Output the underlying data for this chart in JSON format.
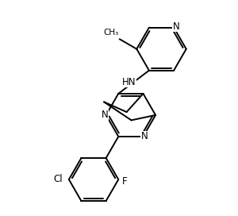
{
  "background_color": "#ffffff",
  "line_color": "#000000",
  "line_width": 1.4,
  "font_size": 8.5,
  "xlim": [
    -3.8,
    4.2
  ],
  "ylim": [
    -4.2,
    3.5
  ]
}
